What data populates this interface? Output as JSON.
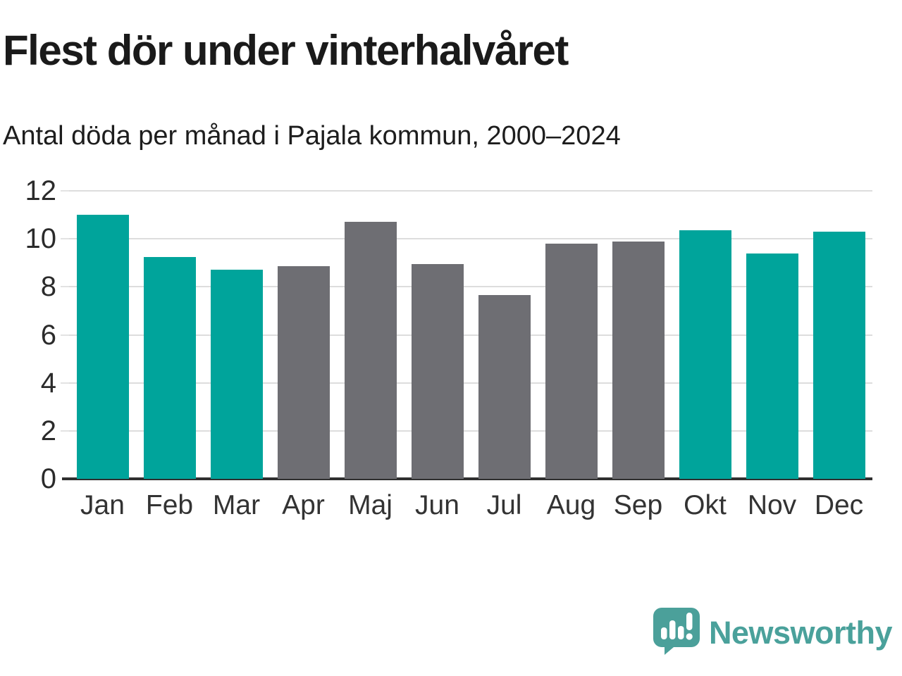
{
  "header": {
    "title": "Flest dör under vinterhalvåret",
    "subtitle": "Antal döda per månad i Pajala kommun, 2000–2024"
  },
  "footer": {
    "brand": "Newsworthy",
    "logo_icon": "newsworthy-speech-bubble-bar-chart-icon"
  },
  "colors": {
    "winter_bar": "#00a49b",
    "summer_bar": "#6e6e73",
    "gridline": "#dddddd",
    "axis_line": "#2f2f2f",
    "title_text": "#1a1a1a",
    "tick_text": "#2b2b2b",
    "logo_teal": "#4ba09a"
  },
  "chart_data": {
    "type": "bar",
    "title": "Flest dör under vinterhalvåret",
    "subtitle": "Antal döda per månad i Pajala kommun, 2000–2024",
    "categories": [
      "Jan",
      "Feb",
      "Mar",
      "Apr",
      "Maj",
      "Jun",
      "Jul",
      "Aug",
      "Sep",
      "Okt",
      "Nov",
      "Dec"
    ],
    "values": [
      11.0,
      9.25,
      8.7,
      8.85,
      10.7,
      8.95,
      7.65,
      9.8,
      9.9,
      10.35,
      9.4,
      10.3
    ],
    "bar_colors": [
      "#00a49b",
      "#00a49b",
      "#00a49b",
      "#6e6e73",
      "#6e6e73",
      "#6e6e73",
      "#6e6e73",
      "#6e6e73",
      "#6e6e73",
      "#00a49b",
      "#00a49b",
      "#00a49b"
    ],
    "xlabel": "",
    "ylabel": "",
    "ylim": [
      0,
      12
    ],
    "yticks": [
      0,
      2,
      4,
      6,
      8,
      10,
      12
    ],
    "grid": true,
    "legend": false
  }
}
